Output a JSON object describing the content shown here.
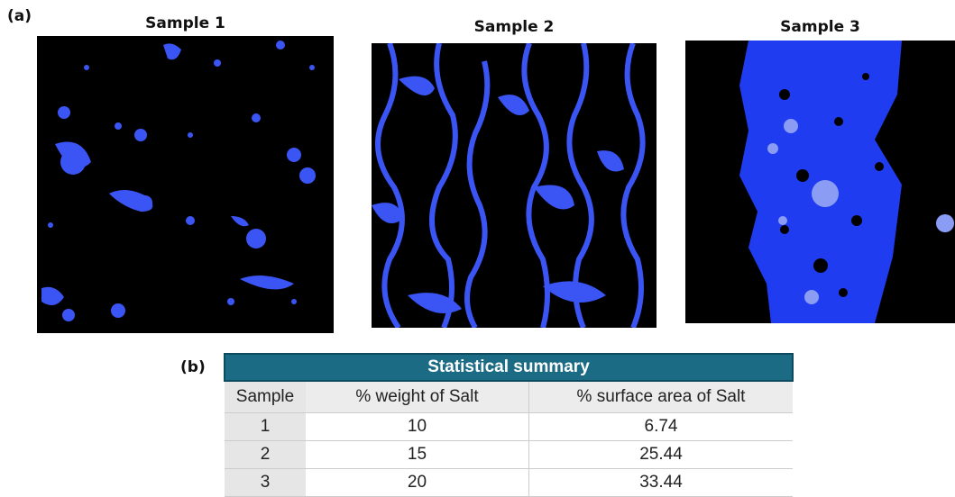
{
  "panel_a": {
    "label": "(a)",
    "samples": [
      "Sample 1",
      "Sample 2",
      "Sample 3"
    ]
  },
  "panel_b": {
    "label": "(b)",
    "table": {
      "title": "Statistical summary",
      "header": [
        "Sample",
        "% weight of Salt",
        "% surface area of Salt"
      ],
      "rows": [
        [
          "1",
          "10",
          "6.74"
        ],
        [
          "2",
          "15",
          "25.44"
        ],
        [
          "3",
          "20",
          "33.44"
        ]
      ]
    }
  }
}
